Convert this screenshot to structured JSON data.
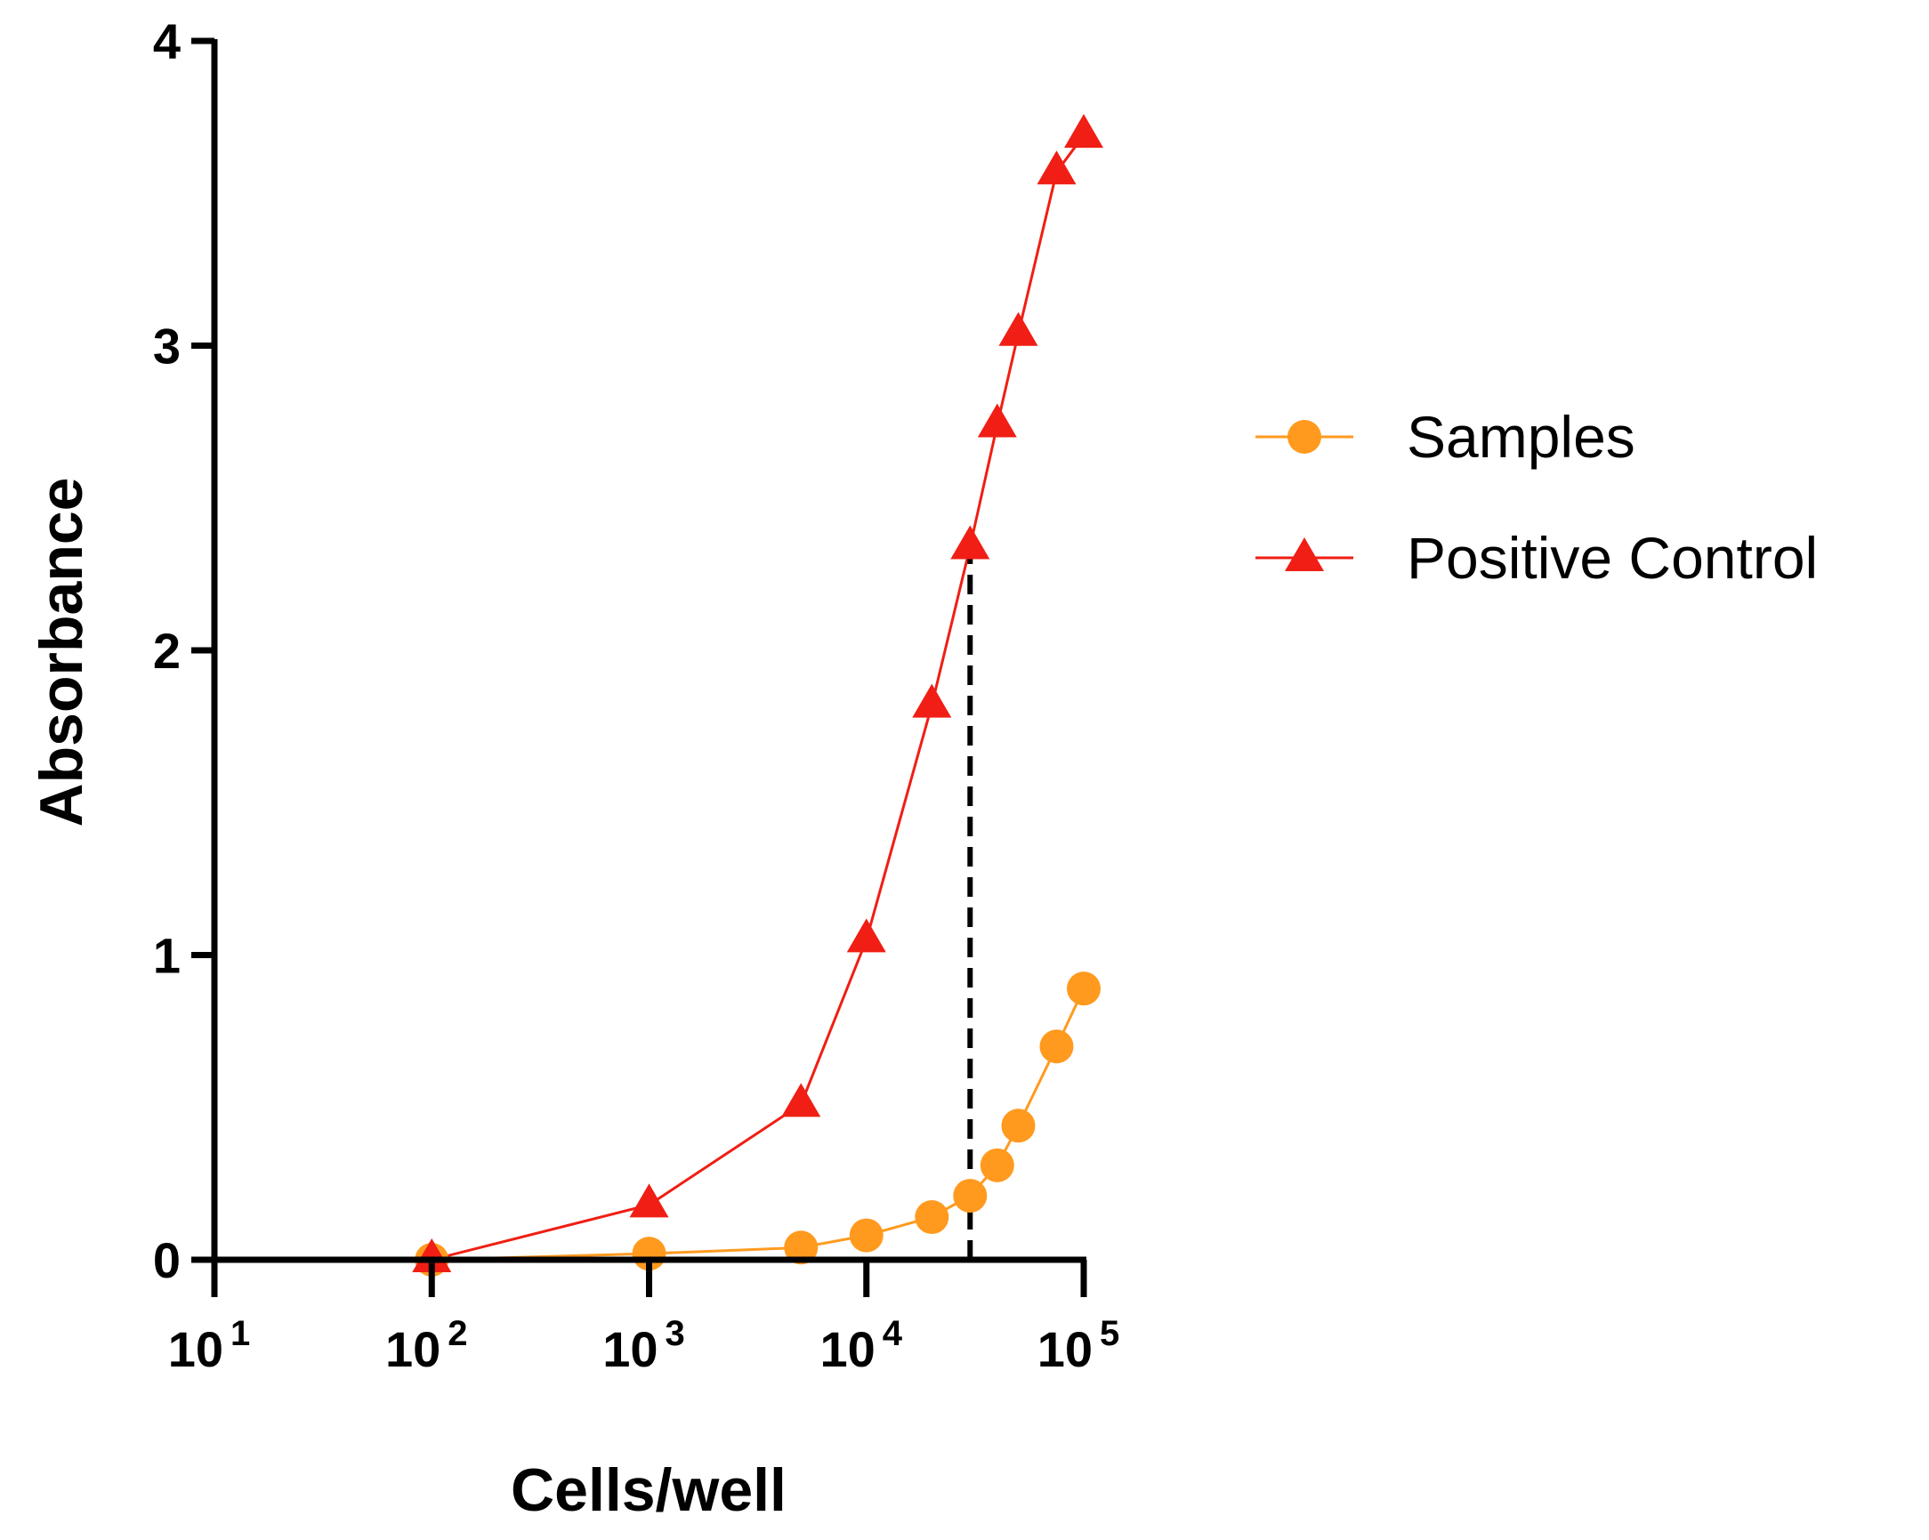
{
  "chart_data": {
    "type": "line",
    "title": "",
    "xlabel": "Cells/well",
    "ylabel": "Absorbance",
    "xscale": "log",
    "xlim": [
      10,
      100000
    ],
    "ylim": [
      0,
      4
    ],
    "x_ticks": [
      {
        "base": "10",
        "exp": "1"
      },
      {
        "base": "10",
        "exp": "2"
      },
      {
        "base": "10",
        "exp": "3"
      },
      {
        "base": "10",
        "exp": "4"
      },
      {
        "base": "10",
        "exp": "5"
      }
    ],
    "y_ticks": [
      "0",
      "1",
      "2",
      "3",
      "4"
    ],
    "grid": false,
    "legend_position": "right",
    "series": [
      {
        "name": "Samples",
        "color": "#FF9A1F",
        "marker": "circle",
        "x": [
          100,
          1000,
          5000,
          10000,
          20000,
          30000,
          40000,
          50000,
          75000,
          100000
        ],
        "y": [
          0.0,
          0.02,
          0.04,
          0.08,
          0.14,
          0.21,
          0.31,
          0.44,
          0.7,
          0.89
        ]
      },
      {
        "name": "Positive Control",
        "color": "#F01E14",
        "marker": "triangle",
        "x": [
          100,
          1000,
          5000,
          10000,
          20000,
          30000,
          40000,
          50000,
          75000,
          100000
        ],
        "y": [
          0.0,
          0.18,
          0.51,
          1.05,
          1.82,
          2.34,
          2.74,
          3.04,
          3.57,
          3.69
        ]
      }
    ],
    "annotations": [
      {
        "type": "dashed-vertical-line",
        "x": 30000,
        "y_from": 0,
        "y_to": 2.34,
        "color": "#000000"
      }
    ]
  }
}
